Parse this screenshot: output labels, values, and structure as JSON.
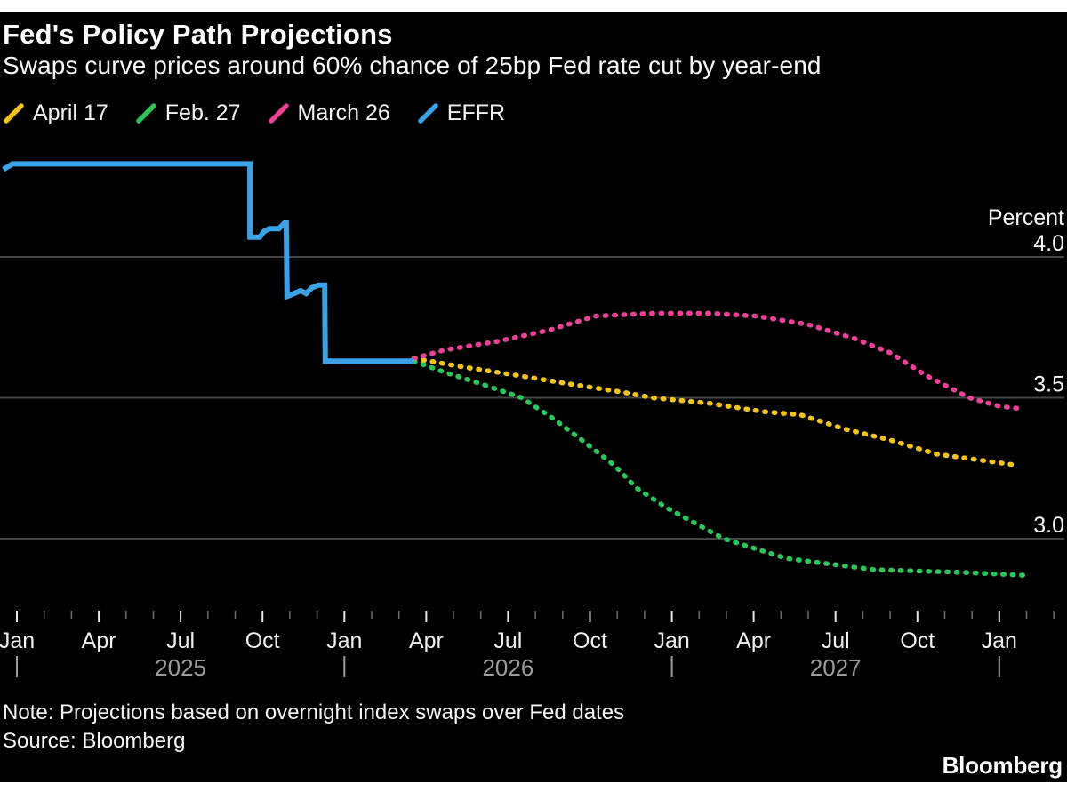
{
  "header": {
    "title": "Fed's Policy Path Projections",
    "subtitle": "Swaps curve prices around 60% chance of 25bp Fed rate cut by year-end"
  },
  "legend": {
    "items": [
      {
        "label": "April 17",
        "color": "#F3C317"
      },
      {
        "label": "Feb. 27",
        "color": "#2BC659"
      },
      {
        "label": "March 26",
        "color": "#ED4097"
      },
      {
        "label": "EFFR",
        "color": "#3AA3E8"
      }
    ]
  },
  "chart_data": {
    "type": "line",
    "title": "Fed's Policy Path Projections",
    "subtitle": "Swaps curve prices around 60% chance of 25bp Fed rate cut by year-end",
    "y_axis_title": "Percent",
    "x_unit": "months since Jan 2025",
    "ylim": [
      2.72,
      4.44
    ],
    "grid": "horizontal",
    "legend_position": "top-left",
    "y_gridlines": [
      4.0,
      3.5,
      3.0
    ],
    "y_tick_labels": [
      "4.0",
      "3.5",
      "3.0"
    ],
    "x_tick_labels": [
      "Jan",
      "Apr",
      "Jul",
      "Oct",
      "Jan",
      "Apr",
      "Jul",
      "Oct",
      "Jan",
      "Apr",
      "Jul",
      "Oct",
      "Jan"
    ],
    "x_tick_months": [
      0,
      3,
      6,
      9,
      12,
      15,
      18,
      21,
      24,
      27,
      30,
      33,
      36
    ],
    "minor_tick_month_range": [
      0,
      38
    ],
    "year_labels": [
      {
        "label": "2025",
        "month": 6
      },
      {
        "label": "2026",
        "month": 18
      },
      {
        "label": "2027",
        "month": 30
      }
    ],
    "year_pipe_months": [
      0,
      12,
      24,
      36
    ],
    "series": [
      {
        "name": "April 17",
        "color": "#F3C317",
        "line_style": "dotted",
        "points": [
          [
            14.55,
            3.64
          ],
          [
            16.3,
            3.61
          ],
          [
            18.3,
            3.58
          ],
          [
            20.2,
            3.55
          ],
          [
            22.2,
            3.52
          ],
          [
            23.3,
            3.5
          ],
          [
            25.4,
            3.48
          ],
          [
            27.4,
            3.45
          ],
          [
            28.7,
            3.44
          ],
          [
            30.3,
            3.39
          ],
          [
            32.0,
            3.35
          ],
          [
            33.7,
            3.3
          ],
          [
            35.2,
            3.28
          ],
          [
            36.7,
            3.26
          ]
        ]
      },
      {
        "name": "Feb. 27",
        "color": "#2BC659",
        "line_style": "dotted",
        "points": [
          [
            14.55,
            3.63
          ],
          [
            15.7,
            3.59
          ],
          [
            17.0,
            3.55
          ],
          [
            18.5,
            3.5
          ],
          [
            19.6,
            3.43
          ],
          [
            20.7,
            3.35
          ],
          [
            21.9,
            3.26
          ],
          [
            22.7,
            3.18
          ],
          [
            23.8,
            3.11
          ],
          [
            25.9,
            3.0
          ],
          [
            28.2,
            2.93
          ],
          [
            31.4,
            2.89
          ],
          [
            34.7,
            2.88
          ],
          [
            36.9,
            2.87
          ]
        ]
      },
      {
        "name": "March 26",
        "color": "#ED4097",
        "line_style": "dotted",
        "points": [
          [
            14.55,
            3.64
          ],
          [
            15.7,
            3.67
          ],
          [
            17.6,
            3.7
          ],
          [
            19.5,
            3.74
          ],
          [
            21.2,
            3.79
          ],
          [
            23.3,
            3.8
          ],
          [
            25.4,
            3.8
          ],
          [
            27.1,
            3.79
          ],
          [
            29.0,
            3.76
          ],
          [
            30.7,
            3.71
          ],
          [
            32.0,
            3.66
          ],
          [
            33.3,
            3.58
          ],
          [
            34.9,
            3.5
          ],
          [
            36.0,
            3.47
          ],
          [
            36.9,
            3.46
          ]
        ]
      },
      {
        "name": "EFFR",
        "color": "#3AA3E8",
        "line_style": "solid",
        "points": [
          [
            -0.5,
            4.31
          ],
          [
            -0.16,
            4.33
          ],
          [
            8.54,
            4.33
          ],
          [
            8.54,
            4.07
          ],
          [
            8.9,
            4.07
          ],
          [
            9.05,
            4.09
          ],
          [
            9.25,
            4.1
          ],
          [
            9.6,
            4.1
          ],
          [
            9.8,
            4.12
          ],
          [
            9.87,
            4.12
          ],
          [
            9.9,
            3.86
          ],
          [
            10.15,
            3.87
          ],
          [
            10.4,
            3.88
          ],
          [
            10.6,
            3.87
          ],
          [
            10.8,
            3.89
          ],
          [
            11.05,
            3.9
          ],
          [
            11.28,
            3.9
          ],
          [
            11.3,
            3.63
          ],
          [
            14.55,
            3.63
          ]
        ]
      }
    ]
  },
  "footer": {
    "note": "Note: Projections based on overnight index swaps over Fed dates",
    "source": "Source: Bloomberg",
    "logo": "Bloomberg"
  },
  "colors": {
    "background": "#000000",
    "page_margin": "#ffffff",
    "gridline": "#454545",
    "major_tick": "#e8e8e8",
    "minor_tick": "#6f6f6f",
    "month_label": "#f0f0f0",
    "year_label": "#9c9c9c",
    "axis_value_label": "#f5f5f5"
  }
}
